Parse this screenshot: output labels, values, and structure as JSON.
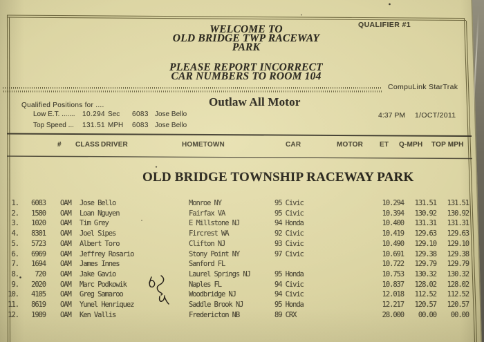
{
  "colors": {
    "paper": "#d8d19f",
    "paper_highlight": "#e6dfae",
    "paper_shadow": "#c6be8b",
    "frame_line": "#6e673f",
    "rule_line": "#3b372a",
    "serif_ink": "#26231a",
    "sans_ink": "#3c392c",
    "mono_ink": "#4b4736",
    "backdrop_top": "#938f7e",
    "backdrop_bottom": "#555248"
  },
  "page_header": {
    "qualifier": "QUALIFIER #1",
    "welcome_line1": "WELCOME TO",
    "welcome_line2": "OLD BRIDGE TWP RACEWAY PARK",
    "notice_line1": "PLEASE REPORT INCORRECT",
    "notice_line2": "CAR NUMBERS TO ROOM 104",
    "system_name": "CompuLink StarTrak"
  },
  "session": {
    "qualified_label": "Qualified Positions for ....",
    "class_title": "Outlaw All Motor",
    "low_et": {
      "label": "Low E.T. .......",
      "value": "10.294",
      "unit": "Sec",
      "car_number": "6083",
      "driver": "Jose Bello"
    },
    "top_speed": {
      "label": "Top Speed ...",
      "value": "131.51",
      "unit": "MPH",
      "car_number": "6083",
      "driver": "Jose Bello"
    },
    "time": "4:37 PM",
    "date": "1/OCT/2011"
  },
  "results": {
    "track_title": "OLD BRIDGE TOWNSHIP RACEWAY PARK",
    "columns": [
      "#",
      "CLASS",
      "DRIVER",
      "HOMETOWN",
      "CAR",
      "MOTOR",
      "ET",
      "Q-MPH",
      "TOP MPH"
    ],
    "rows": [
      {
        "pos": "1.",
        "car_number": "6083",
        "class": "OAM",
        "driver": "Jose Bello",
        "hometown": "Monroe NY",
        "car": "95 Civic",
        "motor": "",
        "et": "10.294",
        "q_mph": "131.51",
        "top_mph": "131.51"
      },
      {
        "pos": "2.",
        "car_number": "1580",
        "class": "OAM",
        "driver": "Loan Nguyen",
        "hometown": "Fairfax VA",
        "car": "95 Civic",
        "motor": "",
        "et": "10.394",
        "q_mph": "130.92",
        "top_mph": "130.92"
      },
      {
        "pos": "3.",
        "car_number": "1020",
        "class": "OAM",
        "driver": "Tim Grey",
        "hometown": "E Millstone NJ",
        "car": "94 Honda",
        "motor": "",
        "et": "10.400",
        "q_mph": "131.31",
        "top_mph": "131.31"
      },
      {
        "pos": "4.",
        "car_number": "8301",
        "class": "OAM",
        "driver": "Joel Sipes",
        "hometown": "Fircrest WA",
        "car": "92 Civic",
        "motor": "",
        "et": "10.419",
        "q_mph": "129.63",
        "top_mph": "129.63"
      },
      {
        "pos": "5.",
        "car_number": "5723",
        "class": "OAM",
        "driver": "Albert Toro",
        "hometown": "Clifton NJ",
        "car": "93 Civic",
        "motor": "",
        "et": "10.490",
        "q_mph": "129.10",
        "top_mph": "129.10"
      },
      {
        "pos": "6.",
        "car_number": "6969",
        "class": "OAM",
        "driver": "Jeffrey Rosario",
        "hometown": "Stony Point NY",
        "car": "97 Civic",
        "motor": "",
        "et": "10.691",
        "q_mph": "129.38",
        "top_mph": "129.38"
      },
      {
        "pos": "7.",
        "car_number": "1694",
        "class": "OAM",
        "driver": "James Innes",
        "hometown": "Sanford FL",
        "car": "",
        "motor": "",
        "et": "10.722",
        "q_mph": "129.79",
        "top_mph": "129.79"
      },
      {
        "pos": "8.",
        "car_number": "720",
        "class": "OAM",
        "driver": "Jake Gavio",
        "hometown": "Laurel Springs NJ",
        "car": "95 Honda",
        "motor": "",
        "et": "10.753",
        "q_mph": "130.32",
        "top_mph": "130.32"
      },
      {
        "pos": "9.",
        "car_number": "2020",
        "class": "OAM",
        "driver": "Marc Podkowik",
        "hometown": "Naples FL",
        "car": "94 Civic",
        "motor": "",
        "et": "10.837",
        "q_mph": "128.02",
        "top_mph": "128.02"
      },
      {
        "pos": "10.",
        "car_number": "4105",
        "class": "OAM",
        "driver": "Greg Samaroo",
        "hometown": "Woodbridge NJ",
        "car": "94 Civic",
        "motor": "",
        "et": "12.018",
        "q_mph": "112.52",
        "top_mph": "112.52"
      },
      {
        "pos": "11.",
        "car_number": "8619",
        "class": "OAM",
        "driver": "Yunel Henriquez",
        "hometown": "Saddle Brook NJ",
        "car": "95 Honda",
        "motor": "",
        "et": "12.217",
        "q_mph": "120.57",
        "top_mph": "120.57"
      },
      {
        "pos": "12.",
        "car_number": "1989",
        "class": "OAM",
        "driver": "Ken Vallis",
        "hometown": "Fredericton NB",
        "car": "89 CRX",
        "motor": "",
        "et": "28.000",
        "q_mph": "00.00",
        "top_mph": "00.00"
      }
    ]
  }
}
